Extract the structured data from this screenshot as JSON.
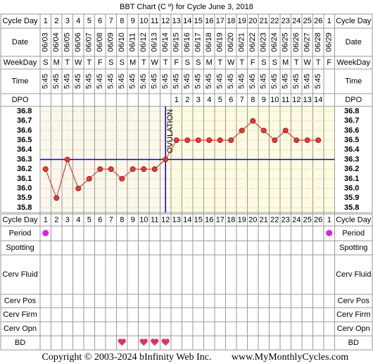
{
  "chart_data": {
    "type": "line",
    "title": "BBT Chart (C º) for Cycle June 3, 2018",
    "row_labels": {
      "cycle_day": "Cycle Day",
      "date": "Date",
      "weekday": "WeekDay",
      "time": "Time",
      "dpo": "DPO",
      "period": "Period",
      "spotting": "Spotting",
      "cerv_fluid": "Cerv Fluid",
      "cerv_pos": "Cerv Pos",
      "cerv_firm": "Cerv Firm",
      "cerv_opn": "Cerv Opn",
      "bd": "BD"
    },
    "categories": [
      1,
      2,
      3,
      4,
      5,
      6,
      7,
      8,
      9,
      10,
      11,
      12,
      13,
      14,
      15,
      16,
      17,
      18,
      19,
      20,
      21,
      22,
      23,
      24,
      25,
      26,
      1
    ],
    "dates": [
      "06/03",
      "06/04",
      "06/05",
      "06/06",
      "06/07",
      "06/08",
      "06/09",
      "06/10",
      "06/11",
      "06/12",
      "06/13",
      "06/14",
      "06/15",
      "06/16",
      "06/17",
      "06/18",
      "06/19",
      "06/20",
      "06/21",
      "06/22",
      "06/23",
      "06/24",
      "06/25",
      "06/26",
      "06/27",
      "06/28",
      "06/29"
    ],
    "weekdays": [
      "S",
      "M",
      "T",
      "W",
      "T",
      "F",
      "S",
      "S",
      "M",
      "T",
      "W",
      "T",
      "F",
      "S",
      "S",
      "M",
      "T",
      "W",
      "T",
      "F",
      "S",
      "S",
      "M",
      "T",
      "W",
      "T",
      "F"
    ],
    "times": [
      "5:45",
      "5:45",
      "5:45",
      "5:45",
      "5:45",
      "5:45",
      "5:45",
      "5:45",
      "5:45",
      "5:45",
      "5:45",
      "5:45",
      "5:45",
      "5:45",
      "5:45",
      "5:45",
      "5:45",
      "5:45",
      "5:45",
      "5:45",
      "5:45",
      "5:45",
      "5:45",
      "5:45",
      "5:45",
      "5:45",
      null
    ],
    "dpo": [
      null,
      null,
      null,
      null,
      null,
      null,
      null,
      null,
      null,
      null,
      null,
      null,
      1,
      2,
      3,
      4,
      5,
      6,
      7,
      8,
      9,
      10,
      11,
      12,
      13,
      14,
      null
    ],
    "values": [
      36.2,
      35.9,
      36.3,
      36.0,
      36.1,
      36.2,
      36.2,
      36.1,
      36.2,
      36.2,
      36.2,
      36.3,
      36.5,
      36.5,
      36.5,
      36.5,
      36.5,
      36.5,
      36.6,
      36.7,
      36.6,
      36.5,
      36.6,
      36.5,
      36.5,
      36.5,
      null
    ],
    "color": "#e03c3c",
    "ylim": [
      35.8,
      36.8
    ],
    "yticks": [
      35.8,
      35.9,
      {
        "value": 36.0,
        "label": "36.0"
      },
      36.1,
      36.2,
      36.3,
      36.4,
      36.5,
      36.6,
      36.7,
      36.8
    ],
    "grid": true,
    "coverline": 36.3,
    "coverline_color": "#0000cc",
    "ovulation_day": 12,
    "ovulation_label": "OVULATION",
    "period": [
      true,
      false,
      false,
      false,
      false,
      false,
      false,
      false,
      false,
      false,
      false,
      false,
      false,
      false,
      false,
      false,
      false,
      false,
      false,
      false,
      false,
      false,
      false,
      false,
      false,
      false,
      true
    ],
    "period_color": "#e020e0",
    "bd": [
      false,
      false,
      false,
      false,
      false,
      false,
      false,
      true,
      false,
      true,
      true,
      true,
      false,
      false,
      false,
      false,
      false,
      false,
      false,
      false,
      false,
      false,
      false,
      false,
      false,
      false,
      false
    ],
    "bd_color": "#e0306a"
  },
  "footer": {
    "copyright": "Copyright © 2003-2024 bInfinity Web Inc.",
    "site": "www.MyMonthlyCycles.com"
  }
}
